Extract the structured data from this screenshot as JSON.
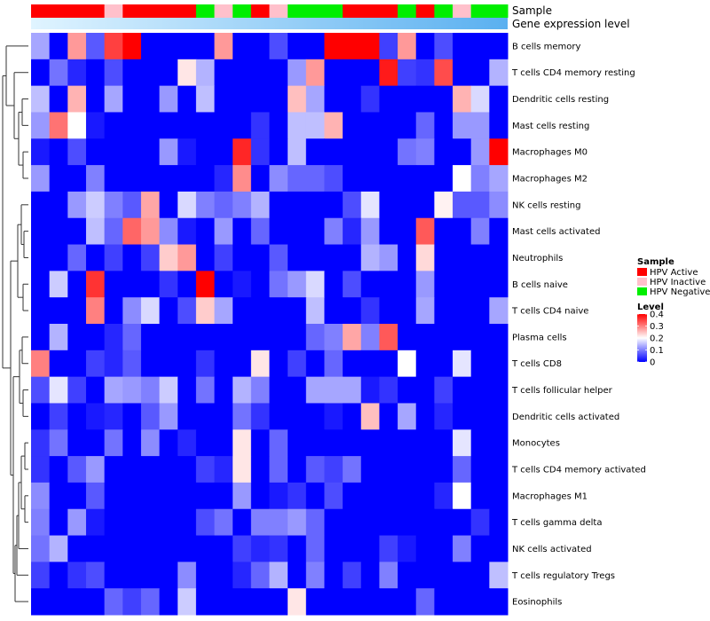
{
  "chart_data": {
    "type": "heatmap",
    "title": "",
    "annotations": {
      "sample_label": "Sample",
      "expression_label": "Gene expression level"
    },
    "sample_groups": [
      "HPV Active",
      "HPV Active",
      "HPV Active",
      "HPV Active",
      "HPV Inactive",
      "HPV Active",
      "HPV Active",
      "HPV Active",
      "HPV Active",
      "HPV Negative",
      "HPV Inactive",
      "HPV Negative",
      "HPV Active",
      "HPV Inactive",
      "HPV Negative",
      "HPV Negative",
      "HPV Negative",
      "HPV Active",
      "HPV Active",
      "HPV Active",
      "HPV Negative",
      "HPV Active",
      "HPV Negative",
      "HPV Inactive",
      "HPV Negative",
      "HPV Negative"
    ],
    "rows": [
      "B cells memory",
      "T cells CD4 memory resting",
      "Dendritic cells resting",
      "Mast cells resting",
      "Macrophages M0",
      "Macrophages M2",
      "NK cells resting",
      "Mast cells activated",
      "Neutrophils",
      "B cells naive",
      "T cells CD4 naive",
      "Plasma cells",
      "T cells CD8",
      "T cells follicular helper",
      "Dendritic cells activated",
      "Monocytes",
      "T cells CD4 memory activated",
      "Macrophages M1",
      "T cells gamma delta",
      "NK cells activated",
      "T cells regulatory  Tregs",
      "Eosinophils"
    ],
    "values": [
      [
        0.13,
        0,
        0.28,
        0.07,
        0.35,
        0.4,
        0,
        0,
        0,
        0,
        0.28,
        0,
        0,
        0.06,
        0,
        0,
        0.4,
        0.4,
        0.4,
        0.05,
        0.28,
        0,
        0.06,
        0,
        0,
        0
      ],
      [
        0,
        0.09,
        0.03,
        0,
        0.06,
        0,
        0,
        0,
        0.22,
        0.14,
        0,
        0,
        0,
        0,
        0.12,
        0.28,
        0,
        0,
        0,
        0.38,
        0.05,
        0.04,
        0.34,
        0,
        0,
        0.14
      ],
      [
        0.15,
        0,
        0.26,
        0,
        0.13,
        0,
        0,
        0.12,
        0,
        0.15,
        0,
        0,
        0,
        0,
        0.25,
        0.13,
        0,
        0,
        0.04,
        0,
        0,
        0,
        0,
        0.26,
        0.17,
        0
      ],
      [
        0.12,
        0.31,
        0.2,
        0.02,
        0,
        0,
        0,
        0,
        0,
        0,
        0,
        0,
        0.04,
        0,
        0.15,
        0.15,
        0.26,
        0,
        0,
        0,
        0,
        0.08,
        0,
        0.12,
        0.12,
        0
      ],
      [
        0.02,
        0,
        0.06,
        0,
        0,
        0,
        0,
        0.12,
        0.02,
        0,
        0,
        0.37,
        0.04,
        0,
        0.15,
        0,
        0,
        0,
        0,
        0,
        0.09,
        0.1,
        0,
        0,
        0.12,
        0.4
      ],
      [
        0.12,
        0,
        0,
        0.1,
        0,
        0,
        0,
        0,
        0,
        0,
        0.03,
        0.29,
        0,
        0.11,
        0.08,
        0.08,
        0.06,
        0,
        0,
        0,
        0,
        0,
        0,
        0.2,
        0.1,
        0.13
      ],
      [
        0,
        0,
        0.12,
        0.16,
        0.1,
        0.07,
        0.27,
        0,
        0.17,
        0.1,
        0.08,
        0.1,
        0.14,
        0,
        0,
        0,
        0,
        0.06,
        0.18,
        0,
        0,
        0,
        0.21,
        0.07,
        0.07,
        0.11
      ],
      [
        0,
        0,
        0,
        0.15,
        0.08,
        0.32,
        0.28,
        0.11,
        0.02,
        0,
        0.12,
        0,
        0.08,
        0,
        0,
        0,
        0.1,
        0.03,
        0.12,
        0,
        0,
        0.33,
        0,
        0,
        0.1,
        0
      ],
      [
        0,
        0,
        0.08,
        0,
        0.05,
        0,
        0.05,
        0.24,
        0.28,
        0,
        0.05,
        0,
        0,
        0.07,
        0,
        0,
        0,
        0,
        0.14,
        0.12,
        0,
        0.23,
        0,
        0,
        0,
        0
      ],
      [
        0,
        0.16,
        0,
        0.36,
        0,
        0,
        0,
        0.04,
        0,
        0.4,
        0,
        0.02,
        0,
        0.09,
        0.12,
        0.17,
        0,
        0.06,
        0,
        0,
        0,
        0.12,
        0,
        0,
        0,
        0
      ],
      [
        0,
        0,
        0,
        0.3,
        0,
        0.11,
        0.17,
        0,
        0.06,
        0.24,
        0.13,
        0,
        0,
        0,
        0,
        0.15,
        0,
        0,
        0.04,
        0,
        0,
        0.13,
        0,
        0,
        0,
        0.13
      ],
      [
        0,
        0.14,
        0,
        0,
        0.03,
        0.08,
        0,
        0,
        0,
        0,
        0,
        0,
        0,
        0,
        0,
        0.08,
        0.1,
        0.27,
        0.1,
        0.33,
        0,
        0,
        0,
        0,
        0,
        0
      ],
      [
        0.3,
        0,
        0,
        0.05,
        0.03,
        0.07,
        0,
        0,
        0,
        0.04,
        0,
        0,
        0.22,
        0,
        0.05,
        0,
        0.08,
        0,
        0,
        0,
        0.2,
        0,
        0,
        0.18,
        0,
        0
      ],
      [
        0.06,
        0.18,
        0.05,
        0,
        0.13,
        0.12,
        0.1,
        0.16,
        0,
        0.09,
        0,
        0.14,
        0.1,
        0,
        0,
        0.13,
        0.13,
        0.13,
        0.02,
        0.04,
        0,
        0,
        0.05,
        0,
        0,
        0
      ],
      [
        0,
        0.05,
        0,
        0.02,
        0.03,
        0,
        0.07,
        0.12,
        0,
        0,
        0,
        0.09,
        0.04,
        0,
        0,
        0,
        0.02,
        0,
        0.25,
        0,
        0.13,
        0,
        0.03,
        0,
        0,
        0
      ],
      [
        0.04,
        0.09,
        0,
        0,
        0.09,
        0,
        0.11,
        0,
        0.03,
        0,
        0,
        0.22,
        0,
        0.08,
        0,
        0,
        0,
        0,
        0,
        0,
        0,
        0,
        0,
        0.18,
        0,
        0
      ],
      [
        0.04,
        0,
        0.07,
        0.12,
        0,
        0,
        0,
        0,
        0,
        0.05,
        0.03,
        0.22,
        0,
        0.08,
        0,
        0.07,
        0.05,
        0.09,
        0,
        0,
        0,
        0,
        0,
        0.08,
        0,
        0
      ],
      [
        0.11,
        0,
        0,
        0.07,
        0,
        0,
        0,
        0,
        0,
        0,
        0,
        0.12,
        0,
        0.02,
        0.04,
        0,
        0.06,
        0,
        0,
        0,
        0,
        0,
        0.03,
        0.2,
        0,
        0
      ],
      [
        0.1,
        0,
        0.12,
        0.02,
        0,
        0,
        0,
        0,
        0,
        0.06,
        0.09,
        0,
        0.1,
        0.1,
        0.12,
        0.08,
        0,
        0,
        0,
        0,
        0,
        0,
        0,
        0,
        0.04,
        0
      ],
      [
        0.09,
        0.14,
        0,
        0,
        0,
        0,
        0,
        0,
        0,
        0,
        0,
        0.05,
        0.03,
        0.04,
        0,
        0.08,
        0,
        0,
        0,
        0.05,
        0.02,
        0,
        0,
        0.1,
        0,
        0
      ],
      [
        0.05,
        0,
        0.04,
        0.06,
        0,
        0,
        0,
        0,
        0.11,
        0,
        0,
        0.03,
        0.08,
        0.14,
        0,
        0.1,
        0,
        0.05,
        0,
        0.1,
        0,
        0,
        0,
        0,
        0,
        0.15
      ],
      [
        0,
        0,
        0,
        0,
        0.08,
        0.05,
        0.08,
        0,
        0.16,
        0,
        0,
        0,
        0,
        0,
        0.22,
        0,
        0,
        0,
        0,
        0,
        0,
        0.08,
        0,
        0,
        0,
        0
      ]
    ],
    "color_scale": {
      "low": "#0000FF",
      "mid": "#FFFFFF",
      "high": "#FF0000",
      "min": 0,
      "mid_value": 0.2,
      "max": 0.4
    },
    "legend": {
      "sample_title": "Sample",
      "sample_items": [
        {
          "label": "HPV Active",
          "color": "#FF0000"
        },
        {
          "label": "HPV Inactive",
          "color": "#FFC0CB"
        },
        {
          "label": "HPV Negative",
          "color": "#00EE00"
        }
      ],
      "level_title": "Level",
      "level_ticks": [
        "0.4",
        "0.3",
        "0.2",
        "0.1",
        "0"
      ],
      "level_values": [
        0.4,
        0.3,
        0.2,
        0.1,
        0
      ]
    },
    "expression_gradient": {
      "start": "#E0F4FF",
      "end": "#5AB0F0"
    }
  }
}
